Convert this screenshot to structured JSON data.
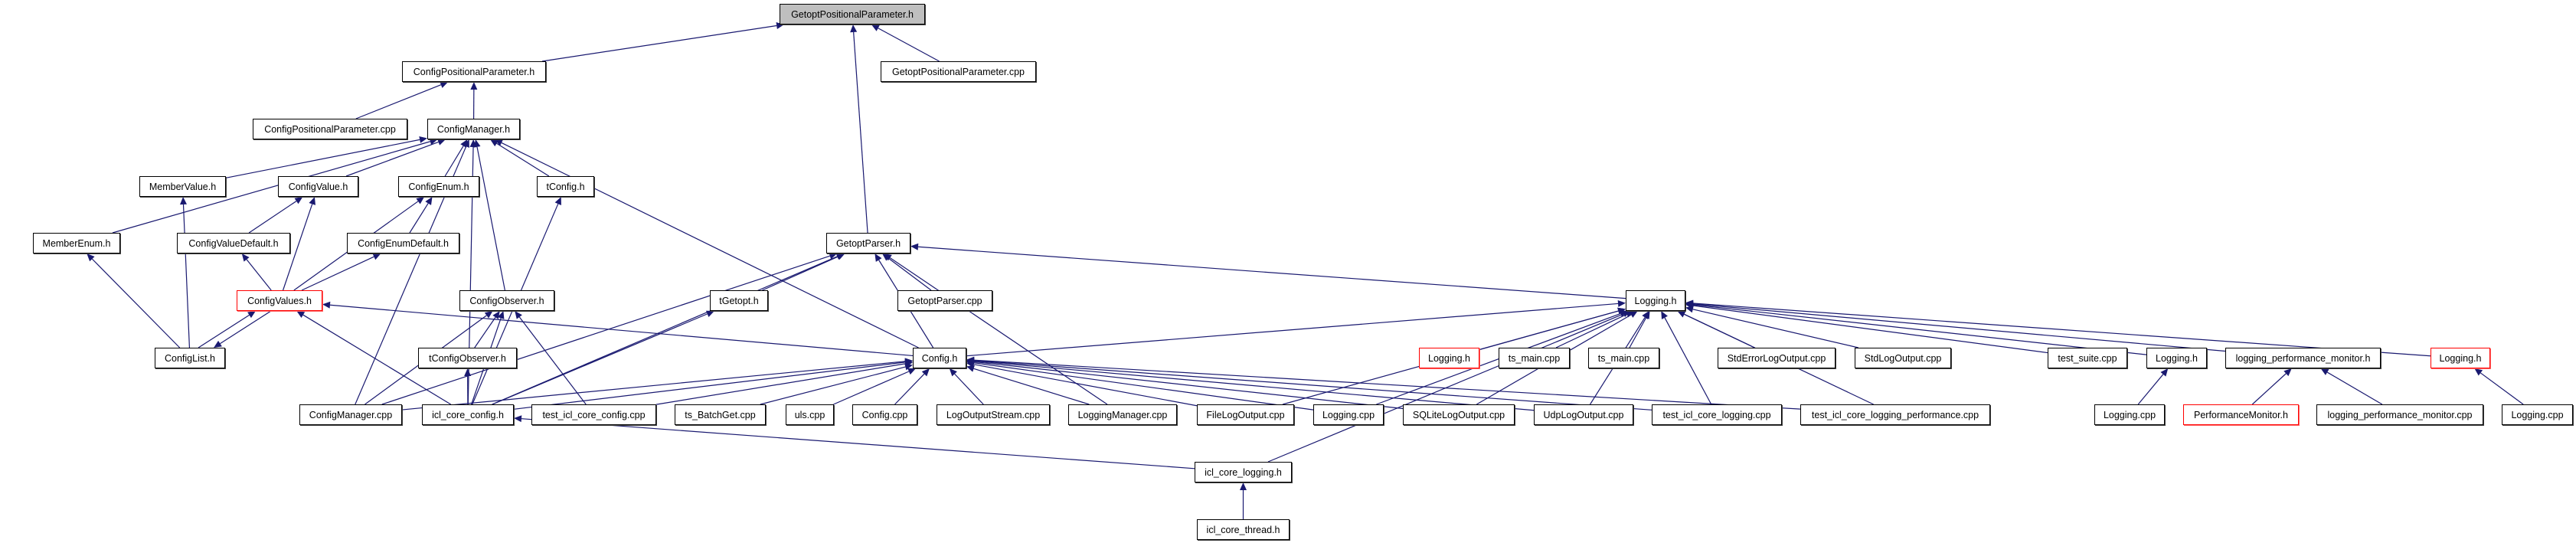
{
  "colors": {
    "edge": "#191970",
    "focus_fill": "#bfbfbf",
    "truncated_border": "#ff0000",
    "node_border": "#000000"
  },
  "nodes": [
    {
      "id": "gpp_h",
      "label": "GetoptPositionalParameter.h",
      "style": "focus"
    },
    {
      "id": "cpp_h",
      "label": "ConfigPositionalParameter.h",
      "style": "normal"
    },
    {
      "id": "gpp_cpp",
      "label": "GetoptPositionalParameter.cpp",
      "style": "normal"
    },
    {
      "id": "cpp_cpp",
      "label": "ConfigPositionalParameter.cpp",
      "style": "normal"
    },
    {
      "id": "cm_h",
      "label": "ConfigManager.h",
      "style": "normal"
    },
    {
      "id": "mv_h",
      "label": "MemberValue.h",
      "style": "normal"
    },
    {
      "id": "cv_h",
      "label": "ConfigValue.h",
      "style": "normal"
    },
    {
      "id": "ce_h",
      "label": "ConfigEnum.h",
      "style": "normal"
    },
    {
      "id": "tc_h",
      "label": "tConfig.h",
      "style": "normal"
    },
    {
      "id": "me_h",
      "label": "MemberEnum.h",
      "style": "normal"
    },
    {
      "id": "cvd_h",
      "label": "ConfigValueDefault.h",
      "style": "normal"
    },
    {
      "id": "ced_h",
      "label": "ConfigEnumDefault.h",
      "style": "normal"
    },
    {
      "id": "gp_h",
      "label": "GetoptParser.h",
      "style": "normal"
    },
    {
      "id": "cvs_h",
      "label": "ConfigValues.h",
      "style": "red"
    },
    {
      "id": "co_h",
      "label": "ConfigObserver.h",
      "style": "normal"
    },
    {
      "id": "tg_h",
      "label": "tGetopt.h",
      "style": "normal"
    },
    {
      "id": "gp_cpp",
      "label": "GetoptParser.cpp",
      "style": "normal"
    },
    {
      "id": "log_h",
      "label": "Logging.h",
      "style": "normal"
    },
    {
      "id": "cl_h",
      "label": "ConfigList.h",
      "style": "normal"
    },
    {
      "id": "tco_h",
      "label": "tConfigObserver.h",
      "style": "normal"
    },
    {
      "id": "cfg_h",
      "label": "Config.h",
      "style": "normal"
    },
    {
      "id": "log_h_r1",
      "label": "Logging.h",
      "style": "red"
    },
    {
      "id": "tsm1",
      "label": "ts_main.cpp",
      "style": "normal"
    },
    {
      "id": "tsm2",
      "label": "ts_main.cpp",
      "style": "normal"
    },
    {
      "id": "sel",
      "label": "StdErrorLogOutput.cpp",
      "style": "normal"
    },
    {
      "id": "slo",
      "label": "StdLogOutput.cpp",
      "style": "normal"
    },
    {
      "id": "tsuite",
      "label": "test_suite.cpp",
      "style": "normal"
    },
    {
      "id": "log_h2",
      "label": "Logging.h",
      "style": "normal"
    },
    {
      "id": "lpm_h",
      "label": "logging_performance_monitor.h",
      "style": "normal"
    },
    {
      "id": "log_h_r2",
      "label": "Logging.h",
      "style": "red"
    },
    {
      "id": "cm_cpp",
      "label": "ConfigManager.cpp",
      "style": "normal"
    },
    {
      "id": "icc_h",
      "label": "icl_core_config.h",
      "style": "normal"
    },
    {
      "id": "ticc",
      "label": "test_icl_core_config.cpp",
      "style": "normal"
    },
    {
      "id": "tsbg",
      "label": "ts_BatchGet.cpp",
      "style": "normal"
    },
    {
      "id": "uls",
      "label": "uls.cpp",
      "style": "normal"
    },
    {
      "id": "cfg_cpp",
      "label": "Config.cpp",
      "style": "normal"
    },
    {
      "id": "los",
      "label": "LogOutputStream.cpp",
      "style": "normal"
    },
    {
      "id": "lm_cpp",
      "label": "LoggingManager.cpp",
      "style": "normal"
    },
    {
      "id": "flo",
      "label": "FileLogOutput.cpp",
      "style": "normal"
    },
    {
      "id": "log_cpp",
      "label": "Logging.cpp",
      "style": "normal"
    },
    {
      "id": "sqlo",
      "label": "SQLiteLogOutput.cpp",
      "style": "normal"
    },
    {
      "id": "udp",
      "label": "UdpLogOutput.cpp",
      "style": "normal"
    },
    {
      "id": "ticl",
      "label": "test_icl_core_logging.cpp",
      "style": "normal"
    },
    {
      "id": "ticlp",
      "label": "test_icl_core_logging_performance.cpp",
      "style": "normal"
    },
    {
      "id": "log_cpp2",
      "label": "Logging.cpp",
      "style": "normal"
    },
    {
      "id": "pm_h",
      "label": "PerformanceMonitor.h",
      "style": "red"
    },
    {
      "id": "lpm_cpp",
      "label": "logging_performance_monitor.cpp",
      "style": "normal"
    },
    {
      "id": "log_cpp3",
      "label": "Logging.cpp",
      "style": "normal"
    },
    {
      "id": "icl_h",
      "label": "icl_core_logging.h",
      "style": "normal"
    },
    {
      "id": "ict_h",
      "label": "icl_core_thread.h",
      "style": "normal"
    }
  ],
  "edges": [
    [
      "cpp_h",
      "gpp_h"
    ],
    [
      "gpp_cpp",
      "gpp_h"
    ],
    [
      "gp_h",
      "gpp_h"
    ],
    [
      "cpp_cpp",
      "cpp_h"
    ],
    [
      "cm_h",
      "cpp_h"
    ],
    [
      "me_h",
      "cm_h"
    ],
    [
      "mv_h",
      "cm_h"
    ],
    [
      "cv_h",
      "cm_h"
    ],
    [
      "ce_h",
      "cm_h"
    ],
    [
      "co_h",
      "cm_h"
    ],
    [
      "tc_h",
      "cm_h"
    ],
    [
      "icc_h",
      "cm_h"
    ],
    [
      "cfg_h",
      "cm_h"
    ],
    [
      "cm_cpp",
      "cm_h"
    ],
    [
      "cvd_h",
      "cv_h"
    ],
    [
      "cvs_h",
      "cv_h"
    ],
    [
      "ced_h",
      "ce_h"
    ],
    [
      "cvs_h",
      "ce_h"
    ],
    [
      "cvs_h",
      "cvd_h"
    ],
    [
      "cvs_h",
      "ced_h"
    ],
    [
      "cl_h",
      "mv_h"
    ],
    [
      "cl_h",
      "me_h"
    ],
    [
      "cl_h",
      "cvs_h"
    ],
    [
      "cvs_h",
      "cl_h"
    ],
    [
      "cfg_h",
      "cvs_h"
    ],
    [
      "icc_h",
      "cvs_h"
    ],
    [
      "cm_cpp",
      "co_h"
    ],
    [
      "icc_h",
      "co_h"
    ],
    [
      "tco_h",
      "co_h"
    ],
    [
      "ticc",
      "co_h"
    ],
    [
      "icc_h",
      "tco_h"
    ],
    [
      "icc_h",
      "tc_h"
    ],
    [
      "icc_h",
      "tg_h"
    ],
    [
      "cm_cpp",
      "gp_h"
    ],
    [
      "icc_h",
      "gp_h"
    ],
    [
      "tg_h",
      "gp_h"
    ],
    [
      "gp_cpp",
      "gp_h"
    ],
    [
      "cfg_h",
      "gp_h"
    ],
    [
      "lm_cpp",
      "gp_h"
    ],
    [
      "log_h",
      "gp_h"
    ],
    [
      "icc_h",
      "cfg_h"
    ],
    [
      "cm_cpp",
      "cfg_h"
    ],
    [
      "ticc",
      "cfg_h"
    ],
    [
      "tsbg",
      "cfg_h"
    ],
    [
      "uls",
      "cfg_h"
    ],
    [
      "cfg_cpp",
      "cfg_h"
    ],
    [
      "los",
      "cfg_h"
    ],
    [
      "lm_cpp",
      "cfg_h"
    ],
    [
      "flo",
      "cfg_h"
    ],
    [
      "log_cpp",
      "cfg_h"
    ],
    [
      "sqlo",
      "cfg_h"
    ],
    [
      "udp",
      "cfg_h"
    ],
    [
      "ticl",
      "cfg_h"
    ],
    [
      "ticlp",
      "cfg_h"
    ],
    [
      "cfg_h",
      "log_h"
    ],
    [
      "log_h_r1",
      "log_h"
    ],
    [
      "tsm1",
      "log_h"
    ],
    [
      "tsm2",
      "log_h"
    ],
    [
      "sel",
      "log_h"
    ],
    [
      "slo",
      "log_h"
    ],
    [
      "tsuite",
      "log_h"
    ],
    [
      "log_h2",
      "log_h"
    ],
    [
      "lpm_h",
      "log_h"
    ],
    [
      "log_h_r2",
      "log_h"
    ],
    [
      "flo",
      "log_h"
    ],
    [
      "log_cpp",
      "log_h"
    ],
    [
      "sqlo",
      "log_h"
    ],
    [
      "udp",
      "log_h"
    ],
    [
      "ticl",
      "log_h"
    ],
    [
      "ticlp",
      "log_h"
    ],
    [
      "icl_h",
      "log_h"
    ],
    [
      "icl_h",
      "icc_h"
    ],
    [
      "ict_h",
      "icl_h"
    ],
    [
      "log_cpp2",
      "log_h2"
    ],
    [
      "pm_h",
      "lpm_h"
    ],
    [
      "lpm_cpp",
      "lpm_h"
    ],
    [
      "log_cpp3",
      "log_h_r2"
    ]
  ]
}
